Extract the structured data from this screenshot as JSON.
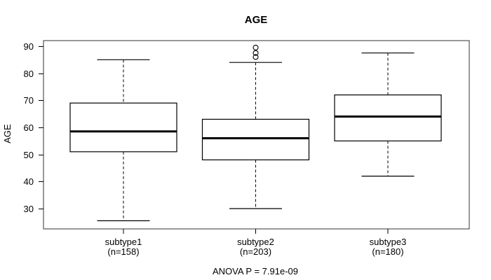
{
  "title": "AGE",
  "y_axis": {
    "label": "AGE",
    "ticks": [
      30,
      40,
      50,
      60,
      70,
      80,
      90
    ]
  },
  "annotation": "ANOVA P = 7.91e-09",
  "chart_data": {
    "type": "boxplot",
    "title": "AGE",
    "xlabel": "",
    "ylabel": "AGE",
    "ylim": [
      22.5,
      92
    ],
    "yticks": [
      30,
      40,
      50,
      60,
      70,
      80,
      90
    ],
    "grid": false,
    "legend": "none",
    "categories": [
      "subtype1",
      "subtype2",
      "subtype3"
    ],
    "groups": [
      {
        "label": "subtype1",
        "count_label": "(n=158)",
        "n": 158,
        "whisker_low": 25.5,
        "q1": 51,
        "median": 58.5,
        "q3": 69,
        "whisker_high": 85,
        "outliers": []
      },
      {
        "label": "subtype2",
        "count_label": "(n=203)",
        "n": 203,
        "whisker_low": 30,
        "q1": 48,
        "median": 56,
        "q3": 63,
        "whisker_high": 84,
        "outliers": [
          86,
          87.5,
          89.5
        ]
      },
      {
        "label": "subtype3",
        "count_label": "(n=180)",
        "n": 180,
        "whisker_low": 42,
        "q1": 55,
        "median": 64,
        "q3": 72,
        "whisker_high": 87.5,
        "outliers": []
      }
    ],
    "annotation": "ANOVA P = 7.91e-09",
    "colors": {
      "background": "#ffffff",
      "box_fill": "#ffffff",
      "line": "#000000",
      "frame": "#555555"
    }
  }
}
